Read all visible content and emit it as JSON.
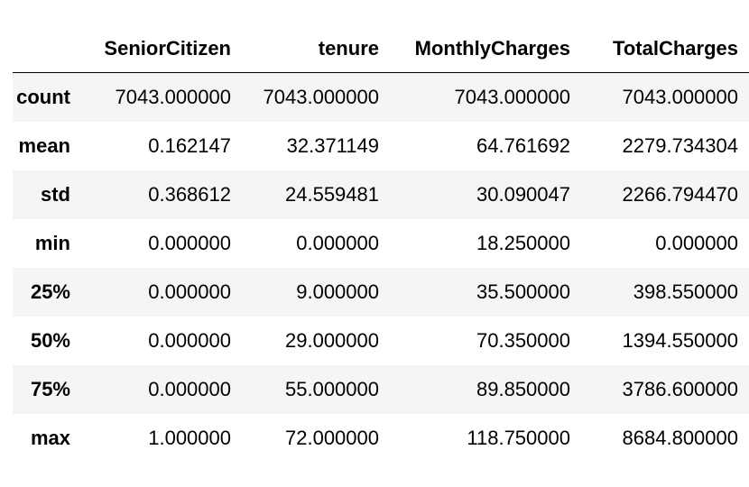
{
  "table": {
    "columns": [
      "SeniorCitizen",
      "tenure",
      "MonthlyCharges",
      "TotalCharges"
    ],
    "rows": [
      {
        "label": "count",
        "values": [
          "7043.000000",
          "7043.000000",
          "7043.000000",
          "7043.000000"
        ]
      },
      {
        "label": "mean",
        "values": [
          "0.162147",
          "32.371149",
          "64.761692",
          "2279.734304"
        ]
      },
      {
        "label": "std",
        "values": [
          "0.368612",
          "24.559481",
          "30.090047",
          "2266.794470"
        ]
      },
      {
        "label": "min",
        "values": [
          "0.000000",
          "0.000000",
          "18.250000",
          "0.000000"
        ]
      },
      {
        "label": "25%",
        "values": [
          "0.000000",
          "9.000000",
          "35.500000",
          "398.550000"
        ]
      },
      {
        "label": "50%",
        "values": [
          "0.000000",
          "29.000000",
          "70.350000",
          "1394.550000"
        ]
      },
      {
        "label": "75%",
        "values": [
          "0.000000",
          "55.000000",
          "89.850000",
          "3786.600000"
        ]
      },
      {
        "label": "max",
        "values": [
          "1.000000",
          "72.000000",
          "118.750000",
          "8684.800000"
        ]
      }
    ]
  }
}
